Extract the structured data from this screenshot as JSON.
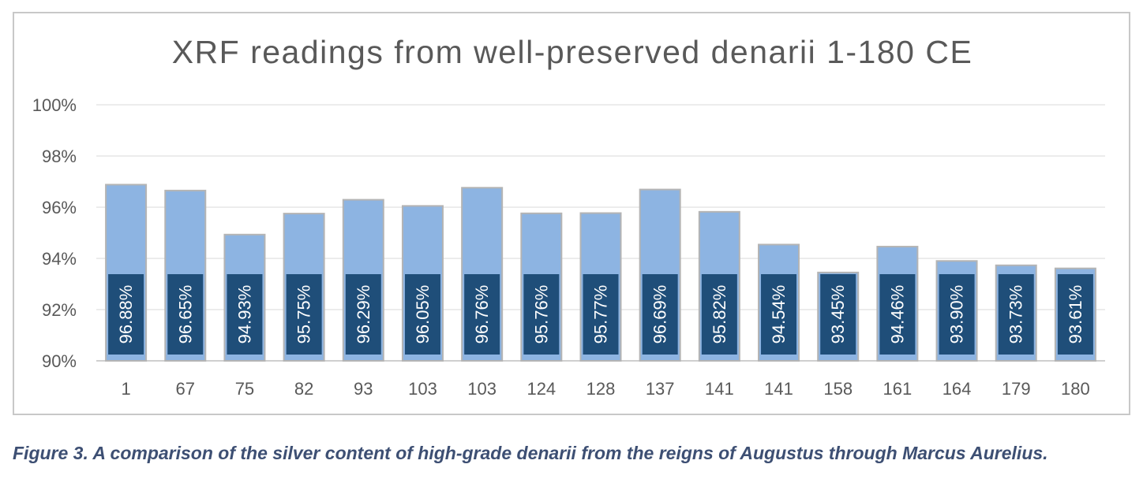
{
  "chart_data": {
    "type": "bar",
    "title": "XRF readings from well-preserved denarii 1-180 CE",
    "categories": [
      "1",
      "67",
      "75",
      "82",
      "93",
      "103",
      "103",
      "124",
      "128",
      "137",
      "141",
      "141",
      "158",
      "161",
      "164",
      "179",
      "180"
    ],
    "values": [
      96.88,
      96.65,
      94.93,
      95.75,
      96.29,
      96.05,
      96.76,
      95.76,
      95.77,
      96.69,
      95.82,
      94.54,
      93.45,
      94.46,
      93.9,
      93.73,
      93.61
    ],
    "data_labels": [
      "96.88%",
      "96.65%",
      "94.93%",
      "95.75%",
      "96.29%",
      "96.05%",
      "96.76%",
      "95.76%",
      "95.77%",
      "96.69%",
      "95.82%",
      "94.54%",
      "93.45%",
      "94.46%",
      "93.90%",
      "93.73%",
      "93.61%"
    ],
    "ylim": [
      90,
      100
    ],
    "yticks": [
      90,
      92,
      94,
      96,
      98,
      100
    ],
    "ytick_labels": [
      "90%",
      "92%",
      "94%",
      "96%",
      "98%",
      "100%"
    ],
    "xlabel": "",
    "ylabel": "",
    "grid": true,
    "colors": {
      "bar": "#8db4e2",
      "bar_edge": "#b4b4b4",
      "label_box": "#1f4e79",
      "label_text": "#ffffff",
      "grid": "#d9d9d9",
      "axis_text": "#595959",
      "title": "#595959"
    }
  },
  "caption": "Figure 3. A comparison of the silver content of high-grade denarii from the reigns of Augustus through Marcus Aurelius."
}
